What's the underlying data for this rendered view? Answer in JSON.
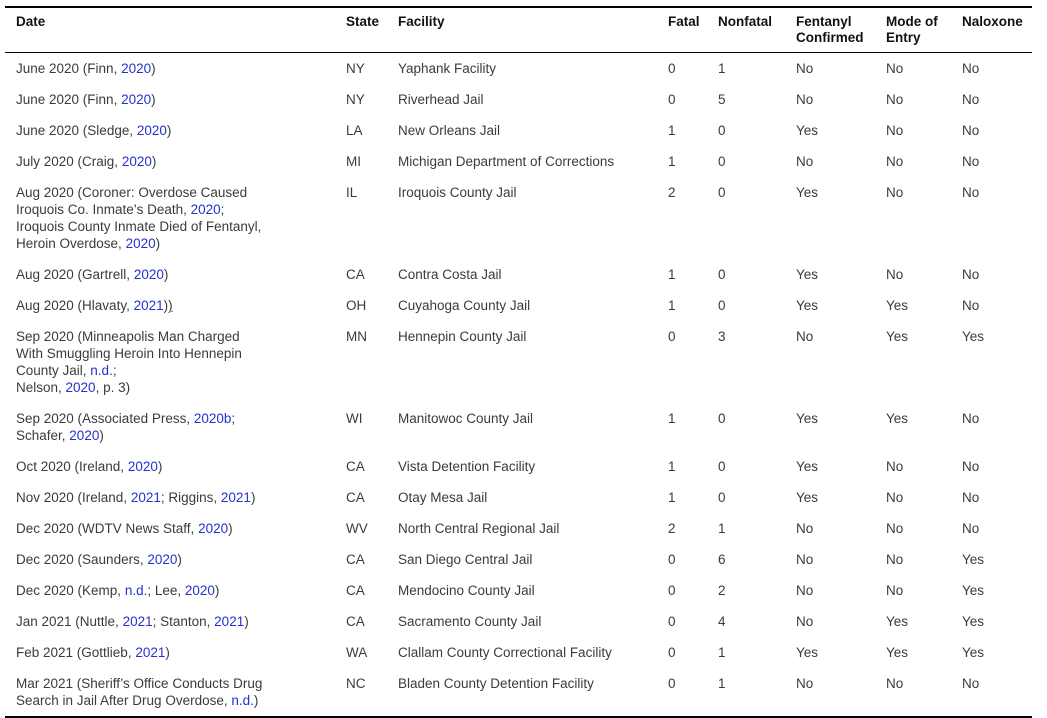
{
  "table": {
    "link_color": "#2531d0",
    "columns": [
      {
        "key": "date",
        "label": "Date"
      },
      {
        "key": "state",
        "label": "State"
      },
      {
        "key": "facility",
        "label": "Facility"
      },
      {
        "key": "fatal",
        "label": "Fatal"
      },
      {
        "key": "nonfatal",
        "label": "Nonfatal"
      },
      {
        "key": "fentanyl_confirmed",
        "label": "Fentanyl Confirmed"
      },
      {
        "key": "mode_of_entry",
        "label": "Mode of Entry"
      },
      {
        "key": "naloxone",
        "label": "Naloxone"
      }
    ],
    "rows": [
      {
        "date": [
          {
            "t": "June 2020 (Finn, "
          },
          {
            "t": "2020",
            "link": true
          },
          {
            "t": ")"
          }
        ],
        "state": "NY",
        "facility": "Yaphank Facility",
        "fatal": "0",
        "nonfatal": "1",
        "fentanyl_confirmed": "No",
        "mode_of_entry": "No",
        "naloxone": "No"
      },
      {
        "date": [
          {
            "t": "June 2020 (Finn, "
          },
          {
            "t": "2020",
            "link": true
          },
          {
            "t": ")"
          }
        ],
        "state": "NY",
        "facility": "Riverhead Jail",
        "fatal": "0",
        "nonfatal": "5",
        "fentanyl_confirmed": "No",
        "mode_of_entry": "No",
        "naloxone": "No"
      },
      {
        "date": [
          {
            "t": "June 2020 (Sledge, "
          },
          {
            "t": "2020",
            "link": true
          },
          {
            "t": ")"
          }
        ],
        "state": "LA",
        "facility": "New Orleans Jail",
        "fatal": "1",
        "nonfatal": "0",
        "fentanyl_confirmed": "Yes",
        "mode_of_entry": "No",
        "naloxone": "No"
      },
      {
        "date": [
          {
            "t": "July 2020 (Craig, "
          },
          {
            "t": "2020",
            "link": true
          },
          {
            "t": ")"
          }
        ],
        "state": "MI",
        "facility": "Michigan Department of Corrections",
        "fatal": "1",
        "nonfatal": "0",
        "fentanyl_confirmed": "No",
        "mode_of_entry": "No",
        "naloxone": "No"
      },
      {
        "date": [
          {
            "t": "Aug 2020 (Coroner: Overdose Caused"
          },
          {
            "br": true
          },
          {
            "t": "Iroquois Co. Inmate’s Death, "
          },
          {
            "t": "2020",
            "link": true
          },
          {
            "t": ";"
          },
          {
            "br": true
          },
          {
            "t": "Iroquois County Inmate Died of Fentanyl,"
          },
          {
            "br": true
          },
          {
            "t": "Heroin Overdose, "
          },
          {
            "t": "2020",
            "link": true
          },
          {
            "t": ")"
          }
        ],
        "state": "IL",
        "facility": "Iroquois County Jail",
        "fatal": "2",
        "nonfatal": "0",
        "fentanyl_confirmed": "Yes",
        "mode_of_entry": "No",
        "naloxone": "No"
      },
      {
        "date": [
          {
            "t": "Aug 2020 (Gartrell, "
          },
          {
            "t": "2020",
            "link": true
          },
          {
            "t": ")"
          }
        ],
        "state": "CA",
        "facility": "Contra Costa Jail",
        "fatal": "1",
        "nonfatal": "0",
        "fentanyl_confirmed": "Yes",
        "mode_of_entry": "No",
        "naloxone": "No"
      },
      {
        "date": [
          {
            "t": "Aug 2020 (Hlavaty, "
          },
          {
            "t": "2021",
            "link": true
          },
          {
            "t": ")"
          },
          {
            "t": ")",
            "u": true
          }
        ],
        "state": "OH",
        "facility": "Cuyahoga County Jail",
        "fatal": "1",
        "nonfatal": "0",
        "fentanyl_confirmed": "Yes",
        "mode_of_entry": "Yes",
        "naloxone": "No"
      },
      {
        "date": [
          {
            "t": "Sep 2020 (Minneapolis Man Charged"
          },
          {
            "br": true
          },
          {
            "t": "With Smuggling Heroin Into Hennepin"
          },
          {
            "br": true
          },
          {
            "t": "County Jail, "
          },
          {
            "t": "n.d.",
            "link": true
          },
          {
            "t": ";"
          },
          {
            "br": true
          },
          {
            "t": "Nelson, "
          },
          {
            "t": "2020",
            "link": true
          },
          {
            "t": ", p. 3)"
          }
        ],
        "state": "MN",
        "facility": "Hennepin County Jail",
        "fatal": "0",
        "nonfatal": "3",
        "fentanyl_confirmed": "No",
        "mode_of_entry": "Yes",
        "naloxone": "Yes"
      },
      {
        "date": [
          {
            "t": "Sep 2020 (Associated Press, "
          },
          {
            "t": "2020b",
            "link": true
          },
          {
            "t": ";"
          },
          {
            "br": true
          },
          {
            "t": "Schafer, "
          },
          {
            "t": "2020",
            "link": true
          },
          {
            "t": ")"
          }
        ],
        "state": "WI",
        "facility": "Manitowoc County Jail",
        "fatal": "1",
        "nonfatal": "0",
        "fentanyl_confirmed": "Yes",
        "mode_of_entry": "Yes",
        "naloxone": "No"
      },
      {
        "date": [
          {
            "t": "Oct 2020 (Ireland, "
          },
          {
            "t": "2020",
            "link": true
          },
          {
            "t": ")"
          }
        ],
        "state": "CA",
        "facility": "Vista Detention Facility",
        "fatal": "1",
        "nonfatal": "0",
        "fentanyl_confirmed": "Yes",
        "mode_of_entry": "No",
        "naloxone": "No"
      },
      {
        "date": [
          {
            "t": "Nov 2020 (Ireland, "
          },
          {
            "t": "2021",
            "link": true
          },
          {
            "t": "; Riggins, "
          },
          {
            "t": "2021",
            "link": true
          },
          {
            "t": ")"
          }
        ],
        "state": "CA",
        "facility": "Otay Mesa Jail",
        "fatal": "1",
        "nonfatal": "0",
        "fentanyl_confirmed": "Yes",
        "mode_of_entry": "No",
        "naloxone": "No"
      },
      {
        "date": [
          {
            "t": "Dec 2020 (WDTV News Staff, "
          },
          {
            "t": "2020",
            "link": true
          },
          {
            "t": ")"
          }
        ],
        "state": "WV",
        "facility": "North Central Regional Jail",
        "fatal": "2",
        "nonfatal": "1",
        "fentanyl_confirmed": "No",
        "mode_of_entry": "No",
        "naloxone": "No"
      },
      {
        "date": [
          {
            "t": "Dec 2020 (Saunders, "
          },
          {
            "t": "2020",
            "link": true
          },
          {
            "t": ")"
          }
        ],
        "state": "CA",
        "facility": "San Diego Central Jail",
        "fatal": "0",
        "nonfatal": "6",
        "fentanyl_confirmed": "No",
        "mode_of_entry": "No",
        "naloxone": "Yes"
      },
      {
        "date": [
          {
            "t": "Dec 2020 (Kemp, "
          },
          {
            "t": "n.d.",
            "link": true
          },
          {
            "t": "; Lee, "
          },
          {
            "t": "2020",
            "link": true
          },
          {
            "t": ")"
          }
        ],
        "state": "CA",
        "facility": "Mendocino County Jail",
        "fatal": "0",
        "nonfatal": "2",
        "fentanyl_confirmed": "No",
        "mode_of_entry": "No",
        "naloxone": "Yes"
      },
      {
        "date": [
          {
            "t": "Jan 2021 (Nuttle, "
          },
          {
            "t": "2021",
            "link": true
          },
          {
            "t": "; Stanton, "
          },
          {
            "t": "2021",
            "link": true
          },
          {
            "t": ")"
          }
        ],
        "state": "CA",
        "facility": "Sacramento County Jail",
        "fatal": "0",
        "nonfatal": "4",
        "fentanyl_confirmed": "No",
        "mode_of_entry": "Yes",
        "naloxone": "Yes"
      },
      {
        "date": [
          {
            "t": "Feb 2021 (Gottlieb, "
          },
          {
            "t": "2021",
            "link": true
          },
          {
            "t": ")"
          }
        ],
        "state": "WA",
        "facility": "Clallam County Correctional Facility",
        "fatal": "0",
        "nonfatal": "1",
        "fentanyl_confirmed": "Yes",
        "mode_of_entry": "Yes",
        "naloxone": "Yes"
      },
      {
        "date": [
          {
            "t": "Mar 2021 (Sheriff’s Office Conducts Drug"
          },
          {
            "br": true
          },
          {
            "t": "Search in Jail After Drug Overdose, "
          },
          {
            "t": "n.d.",
            "link": true
          },
          {
            "t": ")"
          }
        ],
        "state": "NC",
        "facility": "Bladen County Detention Facility",
        "fatal": "0",
        "nonfatal": "1",
        "fentanyl_confirmed": "No",
        "mode_of_entry": "No",
        "naloxone": "No"
      }
    ]
  }
}
